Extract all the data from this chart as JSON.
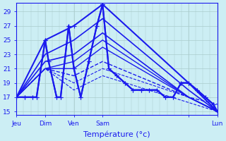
{
  "xlabel": "Température (°c)",
  "xlim": [
    0,
    1
  ],
  "ylim": [
    14.5,
    30.2
  ],
  "yticks": [
    15,
    17,
    19,
    21,
    23,
    25,
    27,
    29
  ],
  "xtick_positions": [
    0.0,
    0.143,
    0.286,
    0.429,
    0.857,
    1.0
  ],
  "xtick_labels": [
    "Jeu",
    "Dim",
    "Ven",
    "Sam",
    "",
    "Lun"
  ],
  "background_color": "#cceef4",
  "grid_color": "#aacccc",
  "line_color": "#1a1aee",
  "series_x": [
    [
      0.0,
      0.04,
      0.08,
      0.1,
      0.143,
      0.16,
      0.2,
      0.22,
      0.26,
      0.286,
      0.32,
      0.36,
      0.4,
      0.429,
      0.46,
      0.5,
      0.54,
      0.58,
      0.62,
      0.66,
      0.7,
      0.74,
      0.78,
      0.82,
      0.857,
      0.9,
      0.94,
      0.98,
      1.0
    ],
    [
      0.0,
      0.04,
      0.08,
      0.1,
      0.143,
      0.16,
      0.2,
      0.22,
      0.26,
      0.286,
      0.32,
      0.36,
      0.4,
      0.429,
      0.46,
      0.5,
      0.54,
      0.58,
      0.62,
      0.66,
      0.7,
      0.74,
      0.78,
      0.82,
      0.857,
      0.9,
      0.94,
      0.98,
      1.0
    ],
    [
      0.0,
      0.143,
      0.286,
      0.429,
      0.857,
      1.0
    ],
    [
      0.0,
      0.143,
      0.286,
      0.429,
      0.857,
      1.0
    ],
    [
      0.0,
      0.143,
      0.286,
      0.429,
      0.857,
      1.0
    ],
    [
      0.0,
      0.143,
      0.286,
      0.429,
      0.857,
      1.0
    ],
    [
      0.0,
      0.143,
      0.286,
      0.429,
      0.857,
      1.0
    ],
    [
      0.0,
      0.143,
      0.286,
      0.429,
      0.857,
      1.0
    ],
    [
      0.0,
      0.143,
      0.286,
      0.429,
      0.857,
      1.0
    ],
    [
      0.0,
      0.143,
      0.286,
      0.429,
      1.0
    ]
  ],
  "series_y": [
    [
      17,
      17,
      17,
      17,
      25,
      22,
      17,
      17,
      27,
      21,
      17,
      22,
      27,
      30,
      21,
      20,
      19,
      18,
      18,
      18,
      18,
      17,
      17,
      19,
      19,
      18,
      17,
      16,
      15
    ],
    [
      17,
      17,
      17,
      17,
      25,
      22,
      17,
      17,
      27,
      21,
      17,
      22,
      27,
      30,
      21,
      20,
      19,
      18,
      18,
      18,
      18,
      17,
      17,
      19,
      19,
      18,
      17,
      16,
      15
    ],
    [
      17,
      25,
      27,
      30,
      19,
      15
    ],
    [
      17,
      23,
      25,
      28,
      18,
      15
    ],
    [
      17,
      22,
      23,
      26,
      17,
      15
    ],
    [
      17,
      21,
      22,
      25,
      17,
      15
    ],
    [
      17,
      21,
      21,
      24,
      17,
      15
    ],
    [
      17,
      21,
      20,
      22,
      17,
      16
    ],
    [
      17,
      21,
      19,
      21,
      17,
      15
    ],
    [
      17,
      21,
      18,
      20,
      15
    ]
  ],
  "line_styles": [
    "solid",
    "solid",
    "solid",
    "solid",
    "solid",
    "solid",
    "solid",
    "dashed",
    "dashed",
    "dashed"
  ],
  "line_widths": [
    1.5,
    1.5,
    1.5,
    1.2,
    1.2,
    1.0,
    1.0,
    1.0,
    0.8,
    0.8
  ],
  "has_markers": [
    true,
    true,
    true,
    false,
    false,
    false,
    false,
    false,
    false,
    false
  ],
  "marker": "+",
  "marker_size": 4
}
